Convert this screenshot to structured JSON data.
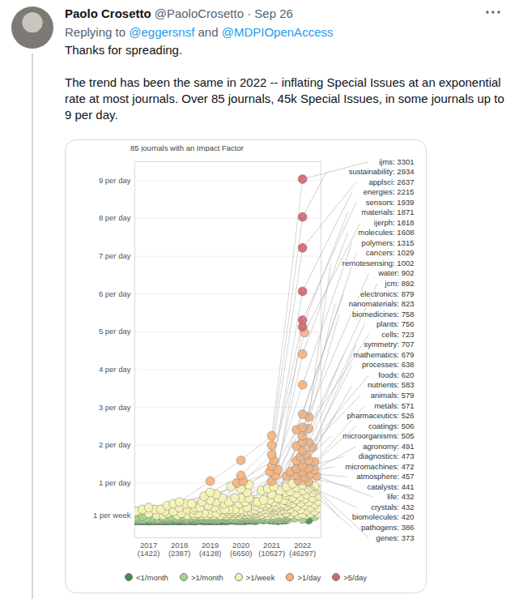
{
  "tweet": {
    "author": "Paolo Crosetto",
    "handle": "@PaoloCrosetto",
    "separator": "·",
    "date": "Sep 26",
    "reply_prefix": "Replying to",
    "reply_to": [
      "@eggersnsf",
      "@MDPIOpenAccess"
    ],
    "reply_joiner": "and",
    "paragraphs": [
      "Thanks for spreading.",
      "The trend has been the same in 2022 -- inflating Special Issues at an exponential rate at most journals. Over 85 journals, 45k Special Issues, in some journals up to 9 per day."
    ]
  },
  "chart_data": {
    "type": "scatter",
    "title": "85 journals with an Impact Factor",
    "categories": [
      "2017",
      "2018",
      "2019",
      "2020",
      "2021",
      "2022"
    ],
    "totals": [
      {
        "value": 1422,
        "label": "(1422)"
      },
      {
        "value": 2387,
        "label": "(2387)"
      },
      {
        "value": 4128,
        "label": "(4128)"
      },
      {
        "value": 6650,
        "label": "(6650)"
      },
      {
        "value": 10527,
        "label": "(10527)"
      },
      {
        "value": 46297,
        "label": "(46297)"
      }
    ],
    "ylim": [
      -0.45,
      9.5
    ],
    "yticks": [
      {
        "value": 0.143,
        "label": "1 per week"
      },
      {
        "value": 1,
        "label": "1 per day"
      },
      {
        "value": 2,
        "label": "2 per day"
      },
      {
        "value": 3,
        "label": "3 per day"
      },
      {
        "value": 4,
        "label": "4 per day"
      },
      {
        "value": 5,
        "label": "5 per day"
      },
      {
        "value": 6,
        "label": "6 per day"
      },
      {
        "value": 7,
        "label": "7 per day"
      },
      {
        "value": 8,
        "label": "8 per day"
      },
      {
        "value": 9,
        "label": "9 per day"
      }
    ],
    "grid": true,
    "legend": "bottom",
    "legend_items": [
      {
        "label": "<1/month",
        "color": "#3f8f4e",
        "min": 0
      },
      {
        "label": ">1/month",
        "color": "#a6d68c",
        "min": 0.033
      },
      {
        "label": ">1/week",
        "color": "#f5f3b5",
        "min": 0.143
      },
      {
        "label": ">1/day",
        "color": "#f4b27c",
        "min": 1
      },
      {
        "label": ">5/day",
        "color": "#d4646f",
        "min": 5
      }
    ],
    "series": [
      {
        "name": "ijms",
        "label": {
          "value": 3301,
          "label": "ijms: 3301"
        },
        "values": [
          0.35,
          0.5,
          1.05,
          1.6,
          2.25,
          9.04
        ]
      },
      {
        "name": "sustainability",
        "label": {
          "value": 2934,
          "label": "sustainability: 2934"
        },
        "values": [
          0.3,
          0.45,
          0.75,
          1.2,
          2.0,
          8.04
        ]
      },
      {
        "name": "applsci",
        "label": {
          "value": 2637,
          "label": "applsci: 2637"
        },
        "values": [
          0.2,
          0.35,
          0.6,
          1.05,
          1.75,
          7.22
        ]
      },
      {
        "name": "energies",
        "label": {
          "value": 2215,
          "label": "energies: 2215"
        },
        "values": [
          0.25,
          0.4,
          0.55,
          1.0,
          1.6,
          6.07
        ]
      },
      {
        "name": "sensors",
        "label": {
          "value": 1939,
          "label": "sensors: 1939"
        },
        "values": [
          0.3,
          0.45,
          0.65,
          0.95,
          1.45,
          5.31
        ]
      },
      {
        "name": "materials",
        "label": {
          "value": 1871,
          "label": "materials: 1871"
        },
        "values": [
          0.3,
          0.45,
          0.7,
          0.9,
          1.35,
          5.13
        ]
      },
      {
        "name": "ijerph",
        "label": {
          "value": 1818,
          "label": "ijerph: 1818"
        },
        "values": [
          0.2,
          0.3,
          0.5,
          0.85,
          1.3,
          4.98
        ]
      },
      {
        "name": "molecules",
        "label": {
          "value": 1608,
          "label": "molecules: 1608"
        },
        "values": [
          0.25,
          0.35,
          0.5,
          0.75,
          1.2,
          4.41
        ]
      },
      {
        "name": "polymers",
        "label": {
          "value": 1315,
          "label": "polymers: 1315"
        },
        "values": [
          0.1,
          0.2,
          0.35,
          0.6,
          1.05,
          3.6
        ]
      },
      {
        "name": "cancers",
        "label": {
          "value": 1029,
          "label": "cancers: 1029"
        },
        "values": [
          0.1,
          0.2,
          0.4,
          0.6,
          0.9,
          2.82
        ]
      },
      {
        "name": "remotesensing",
        "label": {
          "value": 1002,
          "label": "remotesensing: 1002"
        },
        "values": [
          0.15,
          0.25,
          0.45,
          0.6,
          0.85,
          2.75
        ]
      },
      {
        "name": "water",
        "label": {
          "value": 902,
          "label": "water: 902"
        },
        "values": [
          0.12,
          0.2,
          0.35,
          0.5,
          0.8,
          2.47
        ]
      },
      {
        "name": "jcm",
        "label": {
          "value": 892,
          "label": "jcm: 892"
        },
        "values": [
          0.05,
          0.15,
          0.3,
          0.5,
          0.75,
          2.44
        ]
      },
      {
        "name": "electronics",
        "label": {
          "value": 879,
          "label": "electronics: 879"
        },
        "values": [
          0.08,
          0.15,
          0.3,
          0.5,
          0.8,
          2.41
        ]
      },
      {
        "name": "nanomaterials",
        "label": {
          "value": 823,
          "label": "nanomaterials: 823"
        },
        "values": [
          0.08,
          0.15,
          0.3,
          0.45,
          0.7,
          2.25
        ]
      },
      {
        "name": "biomedicines",
        "label": {
          "value": 758,
          "label": "biomedicines: 758"
        },
        "values": [
          0.01,
          0.03,
          0.08,
          0.2,
          0.5,
          2.08
        ]
      },
      {
        "name": "plants",
        "label": {
          "value": 756,
          "label": "plants: 756"
        },
        "values": [
          0.02,
          0.05,
          0.12,
          0.25,
          0.55,
          2.07
        ]
      },
      {
        "name": "cells",
        "label": {
          "value": 723,
          "label": "cells: 723"
        },
        "values": [
          0.03,
          0.08,
          0.2,
          0.35,
          0.6,
          1.98
        ]
      },
      {
        "name": "symmetry",
        "label": {
          "value": 707,
          "label": "symmetry: 707"
        },
        "values": [
          0.06,
          0.12,
          0.2,
          0.3,
          0.5,
          1.94
        ]
      },
      {
        "name": "mathematics",
        "label": {
          "value": 679,
          "label": "mathematics: 679"
        },
        "values": [
          0.04,
          0.08,
          0.15,
          0.25,
          0.55,
          1.86
        ]
      },
      {
        "name": "processes",
        "label": {
          "value": 638,
          "label": "processes: 638"
        },
        "values": [
          0.03,
          0.07,
          0.15,
          0.3,
          0.5,
          1.75
        ]
      },
      {
        "name": "foods",
        "label": {
          "value": 620,
          "label": "foods: 620"
        },
        "values": [
          0.04,
          0.08,
          0.15,
          0.3,
          0.55,
          1.7
        ]
      },
      {
        "name": "nutrients",
        "label": {
          "value": 583,
          "label": "nutrients: 583"
        },
        "values": [
          0.08,
          0.12,
          0.2,
          0.3,
          0.45,
          1.6
        ]
      },
      {
        "name": "animals",
        "label": {
          "value": 579,
          "label": "animals: 579"
        },
        "values": [
          0.03,
          0.07,
          0.15,
          0.3,
          0.45,
          1.59
        ]
      },
      {
        "name": "metals",
        "label": {
          "value": 571,
          "label": "metals: 571"
        },
        "values": [
          0.05,
          0.1,
          0.2,
          0.3,
          0.45,
          1.56
        ]
      },
      {
        "name": "pharmaceutics",
        "label": {
          "value": 526,
          "label": "pharmaceutics: 526"
        },
        "values": [
          0.03,
          0.06,
          0.12,
          0.25,
          0.45,
          1.44
        ]
      },
      {
        "name": "coatings",
        "label": {
          "value": 506,
          "label": "coatings: 506"
        },
        "values": [
          0.04,
          0.08,
          0.15,
          0.25,
          0.4,
          1.39
        ]
      },
      {
        "name": "microorganisms",
        "label": {
          "value": 505,
          "label": "microorganisms: 505"
        },
        "values": [
          0.04,
          0.08,
          0.15,
          0.25,
          0.4,
          1.38
        ]
      },
      {
        "name": "agronomy",
        "label": {
          "value": 491,
          "label": "agronomy: 491"
        },
        "values": [
          0.02,
          0.06,
          0.12,
          0.25,
          0.4,
          1.35
        ]
      },
      {
        "name": "diagnostics",
        "label": {
          "value": 473,
          "label": "diagnostics: 473"
        },
        "values": [
          0.02,
          0.04,
          0.1,
          0.2,
          0.4,
          1.3
        ]
      },
      {
        "name": "micromachines",
        "label": {
          "value": 472,
          "label": "micromachines: 472"
        },
        "values": [
          0.04,
          0.08,
          0.15,
          0.25,
          0.4,
          1.29
        ]
      },
      {
        "name": "atmosphere",
        "label": {
          "value": 457,
          "label": "atmosphere: 457"
        },
        "values": [
          0.05,
          0.1,
          0.15,
          0.25,
          0.35,
          1.25
        ]
      },
      {
        "name": "catalysts",
        "label": {
          "value": 441,
          "label": "catalysts: 441"
        },
        "values": [
          0.06,
          0.1,
          0.15,
          0.25,
          0.35,
          1.21
        ]
      },
      {
        "name": "life",
        "label": {
          "value": 432,
          "label": "life: 432"
        },
        "values": [
          0.01,
          0.02,
          0.05,
          0.15,
          0.3,
          1.18
        ]
      },
      {
        "name": "crystals",
        "label": {
          "value": 432,
          "label": "crystals: 432"
        },
        "values": [
          0.05,
          0.08,
          0.12,
          0.2,
          0.3,
          1.18
        ]
      },
      {
        "name": "biomolecules",
        "label": {
          "value": 420,
          "label": "biomolecules: 420"
        },
        "values": [
          0.03,
          0.06,
          0.12,
          0.2,
          0.35,
          1.15
        ]
      },
      {
        "name": "pathogens",
        "label": {
          "value": 386,
          "label": "pathogens: 386"
        },
        "values": [
          0.02,
          0.05,
          0.1,
          0.2,
          0.3,
          1.06
        ]
      },
      {
        "name": "genes",
        "label": {
          "value": 373,
          "label": "genes: 373"
        },
        "values": [
          0.03,
          0.06,
          0.1,
          0.2,
          0.3,
          1.02
        ]
      }
    ],
    "unlabeled_series": [
      [
        0.05,
        0.1,
        0.15,
        0.25,
        0.4,
        0.98
      ],
      [
        0.04,
        0.08,
        0.12,
        0.2,
        0.35,
        0.95
      ],
      [
        0.02,
        0.05,
        0.1,
        0.18,
        0.3,
        0.92
      ],
      [
        0.03,
        0.06,
        0.1,
        0.15,
        0.3,
        0.9
      ],
      [
        0.02,
        0.04,
        0.08,
        0.15,
        0.28,
        0.88
      ],
      [
        0.03,
        0.05,
        0.1,
        0.18,
        0.3,
        0.85
      ],
      [
        0.02,
        0.04,
        0.08,
        0.12,
        0.25,
        0.82
      ],
      [
        0.01,
        0.03,
        0.06,
        0.12,
        0.25,
        0.8
      ],
      [
        0.02,
        0.04,
        0.07,
        0.12,
        0.22,
        0.78
      ],
      [
        0.03,
        0.05,
        0.08,
        0.12,
        0.22,
        0.75
      ],
      [
        0.01,
        0.03,
        0.05,
        0.1,
        0.2,
        0.72
      ],
      [
        0.02,
        0.04,
        0.06,
        0.1,
        0.2,
        0.7
      ],
      [
        0.01,
        0.02,
        0.05,
        0.1,
        0.18,
        0.68
      ],
      [
        0.02,
        0.03,
        0.06,
        0.1,
        0.18,
        0.66
      ],
      [
        0.01,
        0.02,
        0.04,
        0.08,
        0.17,
        0.64
      ],
      [
        0.01,
        0.03,
        0.05,
        0.08,
        0.16,
        0.62
      ],
      [
        0.02,
        0.03,
        0.05,
        0.08,
        0.15,
        0.6
      ],
      [
        0.01,
        0.02,
        0.04,
        0.07,
        0.15,
        0.58
      ],
      [
        0.01,
        0.02,
        0.04,
        0.07,
        0.14,
        0.56
      ],
      [
        0.01,
        0.02,
        0.03,
        0.06,
        0.13,
        0.54
      ],
      [
        0.01,
        0.02,
        0.04,
        0.06,
        0.13,
        0.52
      ],
      [
        0.01,
        0.02,
        0.03,
        0.06,
        0.12,
        0.5
      ],
      [
        0.01,
        0.01,
        0.03,
        0.05,
        0.12,
        0.48
      ],
      [
        0.01,
        0.02,
        0.03,
        0.05,
        0.11,
        0.46
      ],
      [
        0.01,
        0.01,
        0.02,
        0.05,
        0.1,
        0.44
      ],
      [
        0.01,
        0.02,
        0.03,
        0.05,
        0.1,
        0.42
      ],
      [
        0.01,
        0.01,
        0.02,
        0.04,
        0.1,
        0.4
      ],
      [
        0.01,
        0.01,
        0.02,
        0.04,
        0.09,
        0.38
      ],
      [
        0.01,
        0.01,
        0.02,
        0.04,
        0.08,
        0.36
      ],
      [
        0.01,
        0.01,
        0.02,
        0.03,
        0.08,
        0.34
      ],
      [
        0.01,
        0.01,
        0.02,
        0.03,
        0.07,
        0.32
      ],
      [
        0.01,
        0.01,
        0.02,
        0.03,
        0.07,
        0.3
      ],
      [
        0.01,
        0.01,
        0.02,
        0.03,
        0.06,
        0.28
      ],
      [
        0.01,
        0.01,
        0.01,
        0.03,
        0.06,
        0.26
      ],
      [
        0.01,
        0.01,
        0.01,
        0.02,
        0.05,
        0.24
      ],
      [
        0.01,
        0.01,
        0.01,
        0.02,
        0.05,
        0.22
      ],
      [
        0.01,
        0.01,
        0.01,
        0.02,
        0.05,
        0.2
      ],
      [
        0.01,
        0.01,
        0.01,
        0.02,
        0.04,
        0.19
      ],
      [
        0.01,
        0.01,
        0.01,
        0.02,
        0.04,
        0.18
      ],
      [
        0.01,
        0.01,
        0.01,
        0.02,
        0.04,
        0.17
      ],
      [
        0.01,
        0.01,
        0.01,
        0.02,
        0.04,
        0.16
      ],
      [
        0.01,
        0.01,
        0.01,
        0.02,
        0.03,
        0.15
      ],
      [
        0.01,
        0.01,
        0.01,
        0.01,
        0.03,
        0.12
      ],
      [
        0.01,
        0.01,
        0.01,
        0.01,
        0.03,
        0.1
      ],
      [
        0.01,
        0.01,
        0.01,
        0.01,
        0.02,
        0.08
      ],
      [
        0.01,
        0.01,
        0.01,
        0.01,
        0.02,
        0.05
      ],
      [
        0.01,
        0.01,
        0.01,
        0.01,
        0.01,
        0.03
      ]
    ]
  }
}
